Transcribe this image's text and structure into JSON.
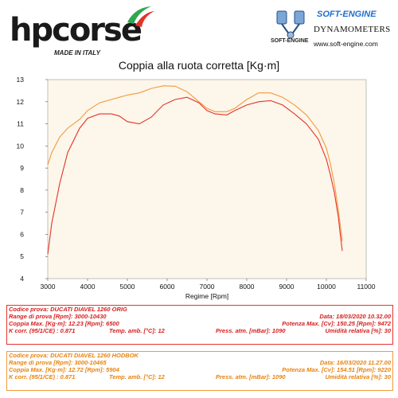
{
  "branding": {
    "left_logo_text": "hpcorse",
    "left_logo_sub": "MADE IN ITALY",
    "right_brand": "SOFT-ENGINE",
    "right_sub_small": "SOFT-ENGINE",
    "right_title": "DYNAMOMETERS",
    "right_url": "www.soft-engine.com",
    "flag_colors": [
      "#2fa84f",
      "#e4342a"
    ]
  },
  "chart_data": {
    "type": "line",
    "title": "Coppia alla ruota corretta [Kg·m]",
    "xlabel": "Regime [Rpm]",
    "ylabel": "",
    "xlim": [
      3000,
      11000
    ],
    "ylim": [
      4,
      13
    ],
    "x_ticks": [
      3000,
      4000,
      5000,
      6000,
      7000,
      8000,
      9000,
      10000,
      11000
    ],
    "y_ticks": [
      4,
      5,
      6,
      7,
      8,
      9,
      10,
      11,
      12,
      13
    ],
    "grid": false,
    "plot_background": "#fdf6ea",
    "series": [
      {
        "color": "#e4342a",
        "x": [
          3000,
          3100,
          3300,
          3500,
          3800,
          4000,
          4300,
          4600,
          4800,
          5000,
          5300,
          5600,
          5900,
          6200,
          6500,
          6800,
          7000,
          7200,
          7500,
          7700,
          8000,
          8300,
          8600,
          8900,
          9200,
          9500,
          9800,
          10000,
          10100,
          10200,
          10300,
          10350,
          10400
        ],
        "y": [
          5.1,
          6.5,
          8.3,
          9.7,
          10.8,
          11.25,
          11.45,
          11.45,
          11.35,
          11.1,
          11.0,
          11.3,
          11.85,
          12.1,
          12.2,
          11.95,
          11.6,
          11.45,
          11.4,
          11.6,
          11.85,
          12.0,
          12.05,
          11.85,
          11.45,
          11.0,
          10.3,
          9.4,
          8.7,
          7.9,
          6.8,
          6.0,
          5.25
        ]
      },
      {
        "color": "#f39a3e",
        "x": [
          3000,
          3100,
          3300,
          3500,
          3800,
          4000,
          4300,
          4600,
          4800,
          5000,
          5300,
          5600,
          5904,
          6200,
          6500,
          6800,
          7000,
          7200,
          7500,
          7700,
          8000,
          8300,
          8600,
          8900,
          9200,
          9500,
          9800,
          10000,
          10100,
          10200,
          10300,
          10350,
          10400
        ],
        "y": [
          9.15,
          9.7,
          10.4,
          10.8,
          11.2,
          11.6,
          11.95,
          12.1,
          12.2,
          12.3,
          12.4,
          12.6,
          12.72,
          12.7,
          12.45,
          12.0,
          11.7,
          11.55,
          11.55,
          11.7,
          12.1,
          12.4,
          12.4,
          12.2,
          11.85,
          11.4,
          10.7,
          9.9,
          9.2,
          8.3,
          7.1,
          6.4,
          5.7
        ]
      }
    ]
  },
  "tests": [
    {
      "color": "#d81e1e",
      "codice": "Codice prova: DUCATI DIAVEL 1260 ORIG",
      "range": "Range di prova [Rpm]: 3000-10430",
      "data": "Data: 18/03/2020  10.32.00",
      "coppia": "Coppia Max. [Kg·m]: 12.23  [Rpm]: 6500",
      "potenza": "Potenza Max. [Cv]: 150.25  [Rpm]: 9472",
      "kcorr": "K corr. (95/1/CE) : 0.871",
      "temp": "Temp. amb. [°C]: 12",
      "press": "Press. atm. [mBar]: 1090",
      "umidita": "Umidità relativa [%]: 30"
    },
    {
      "color": "#e8830f",
      "codice": "Codice prova: DUCATI DIAVEL 1260 HODBOK",
      "range": "Range di prova [Rpm]: 3000-10465",
      "data": "Data: 16/03/2020  11.27.00",
      "coppia": "Coppia Max. [Kg·m]: 12.72  [Rpm]: 5904",
      "potenza": "Potenza Max. [Cv]: 154.51  [Rpm]: 9220",
      "kcorr": "K corr. (95/1/CE) : 0.871",
      "temp": "Temp. amb. [°C]: 12",
      "press": "Press. atm. [mBar]: 1090",
      "umidita": "Umidità relativa [%]: 30"
    }
  ]
}
